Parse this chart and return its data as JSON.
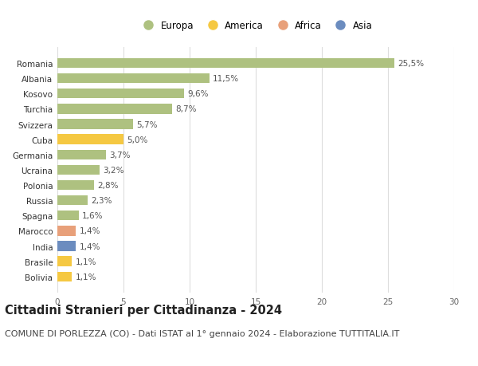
{
  "categories": [
    "Bolivia",
    "Brasile",
    "India",
    "Marocco",
    "Spagna",
    "Russia",
    "Polonia",
    "Ucraina",
    "Germania",
    "Cuba",
    "Svizzera",
    "Turchia",
    "Kosovo",
    "Albania",
    "Romania"
  ],
  "values": [
    1.1,
    1.1,
    1.4,
    1.4,
    1.6,
    2.3,
    2.8,
    3.2,
    3.7,
    5.0,
    5.7,
    8.7,
    9.6,
    11.5,
    25.5
  ],
  "labels": [
    "1,1%",
    "1,1%",
    "1,4%",
    "1,4%",
    "1,6%",
    "2,3%",
    "2,8%",
    "3,2%",
    "3,7%",
    "5,0%",
    "5,7%",
    "8,7%",
    "9,6%",
    "11,5%",
    "25,5%"
  ],
  "colors": [
    "#f5c842",
    "#f5c842",
    "#6b8cbf",
    "#e8a07a",
    "#aec180",
    "#aec180",
    "#aec180",
    "#aec180",
    "#aec180",
    "#f5c842",
    "#aec180",
    "#aec180",
    "#aec180",
    "#aec180",
    "#aec180"
  ],
  "legend_labels": [
    "Europa",
    "America",
    "Africa",
    "Asia"
  ],
  "legend_colors": [
    "#aec180",
    "#f5c842",
    "#e8a07a",
    "#6b8cbf"
  ],
  "title": "Cittadini Stranieri per Cittadinanza - 2024",
  "subtitle": "COMUNE DI PORLEZZA (CO) - Dati ISTAT al 1° gennaio 2024 - Elaborazione TUTTITALIA.IT",
  "xlim": [
    0,
    30
  ],
  "xticks": [
    0,
    5,
    10,
    15,
    20,
    25,
    30
  ],
  "background_color": "#ffffff",
  "plot_bg_color": "#ffffff",
  "grid_color": "#dddddd",
  "title_fontsize": 10.5,
  "subtitle_fontsize": 8,
  "label_fontsize": 7.5,
  "tick_fontsize": 7.5,
  "legend_fontsize": 8.5
}
